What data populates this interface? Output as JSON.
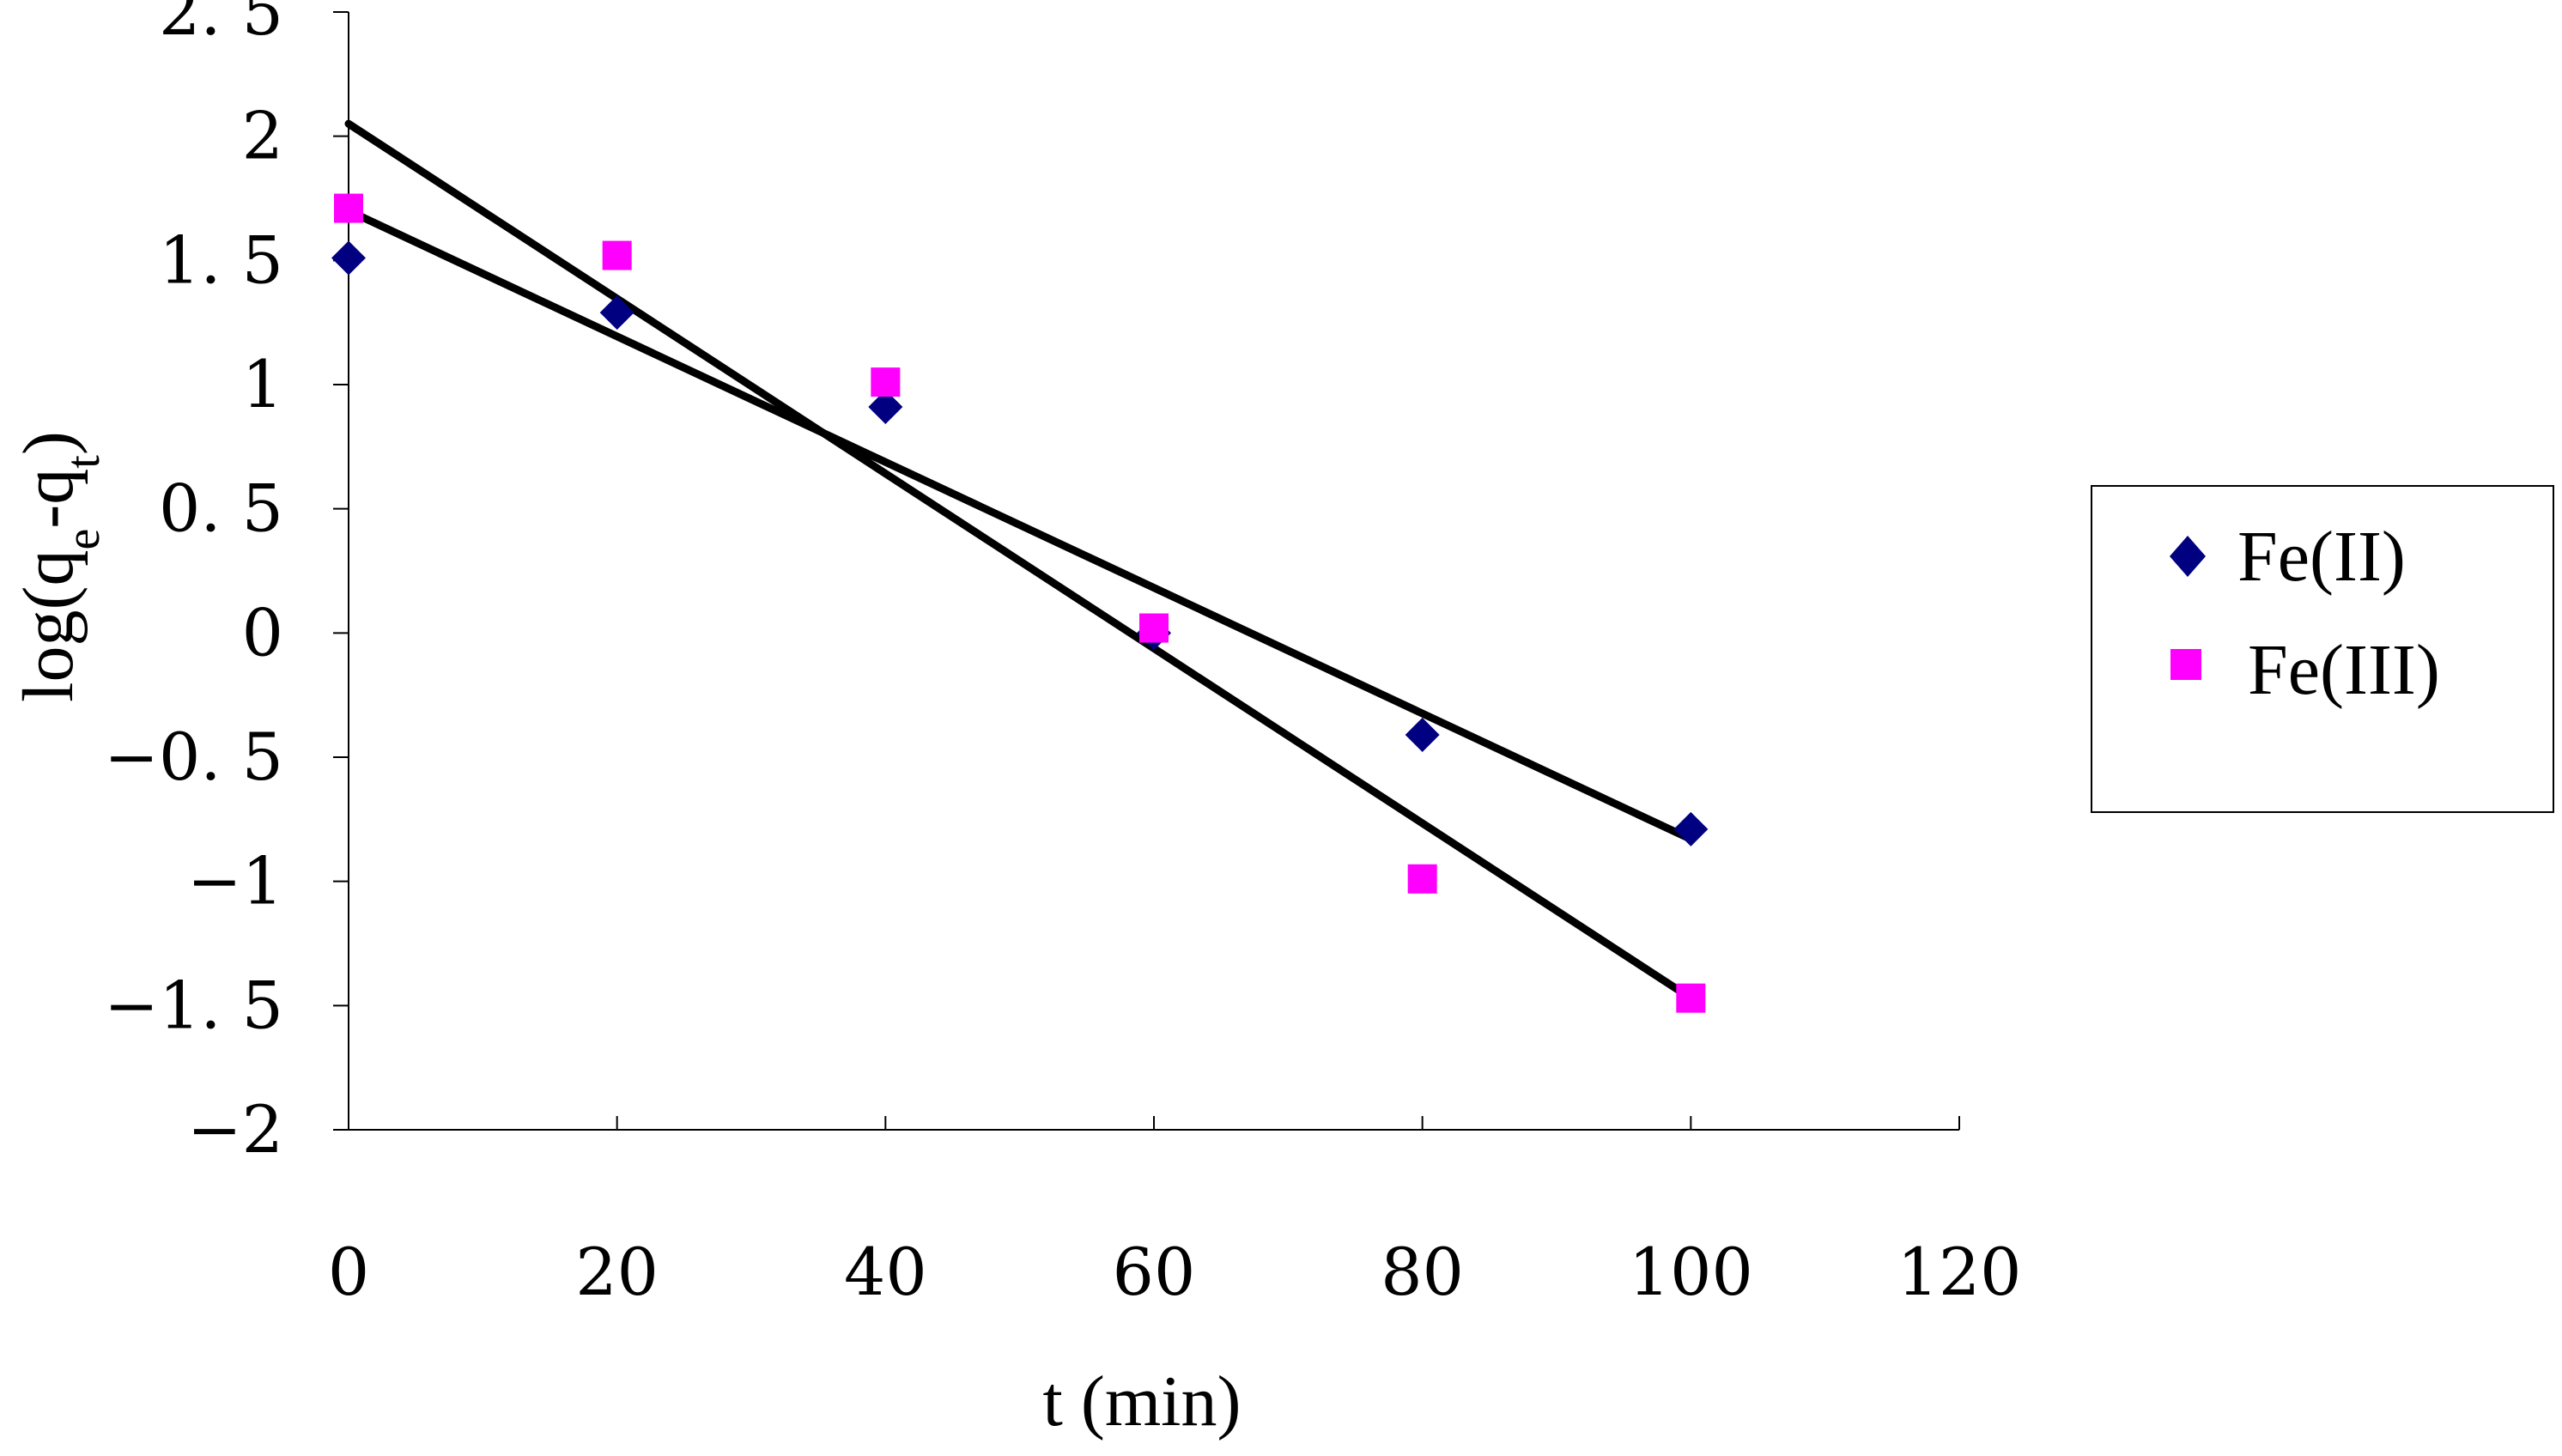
{
  "chart_data": {
    "type": "scatter",
    "xlabel": "t (min)",
    "ylabel": {
      "prefix": "log(q",
      "sub1": "e",
      "middle": "-q",
      "sub2": "t",
      "suffix": ")"
    },
    "xlim": [
      0,
      120
    ],
    "ylim": [
      -2,
      2.5
    ],
    "x_ticks": [
      0,
      20,
      40,
      60,
      80,
      100,
      120
    ],
    "x_tick_labels": [
      "0",
      "20",
      "40",
      "60",
      "80",
      "100",
      "120"
    ],
    "y_ticks": [
      2.5,
      2,
      1.5,
      1,
      0.5,
      0,
      -0.5,
      -1,
      -1.5,
      -2
    ],
    "y_tick_labels": [
      "2. 5",
      "2",
      "1. 5",
      "1",
      "0. 5",
      "0",
      "−0. 5",
      "−1",
      "−1. 5",
      "−2"
    ],
    "grid": false,
    "legend_position": "right",
    "series": [
      {
        "name": "Fe(II)",
        "marker": "diamond",
        "color": "#000080",
        "x": [
          0,
          20,
          40,
          60,
          80,
          100
        ],
        "y": [
          1.51,
          1.29,
          0.91,
          0.0,
          -0.41,
          -0.79
        ],
        "trendline": {
          "x": [
            0,
            100
          ],
          "y": [
            1.7,
            -0.83
          ]
        }
      },
      {
        "name": "Fe(III)",
        "marker": "square",
        "color": "#FF00FF",
        "x": [
          0,
          20,
          40,
          60,
          80,
          100
        ],
        "y": [
          1.71,
          1.52,
          1.01,
          0.02,
          -0.99,
          -1.47
        ],
        "trendline": {
          "x": [
            0,
            100
          ],
          "y": [
            2.05,
            -1.47
          ]
        }
      }
    ]
  }
}
